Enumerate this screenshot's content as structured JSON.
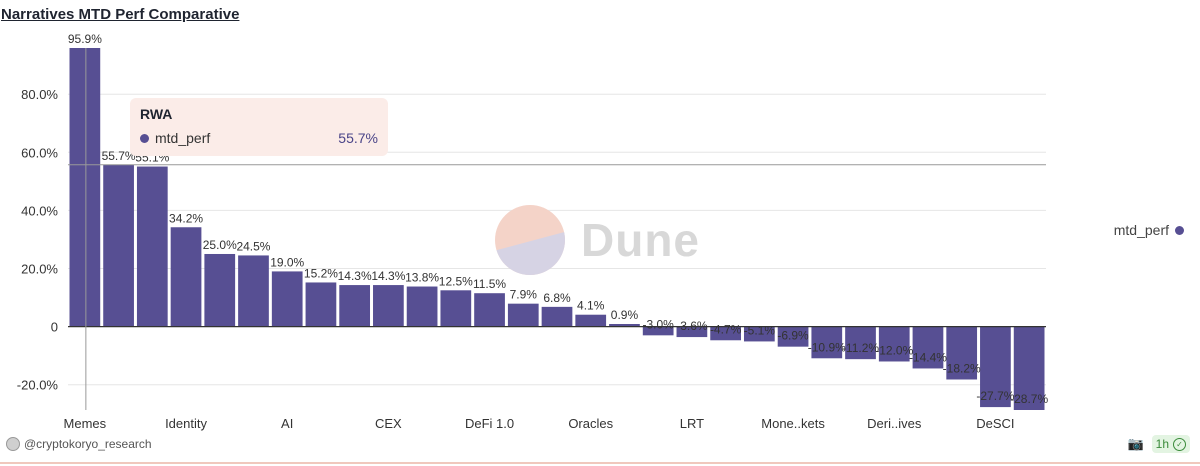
{
  "header": {
    "title": "Narratives MTD Perf Comparative"
  },
  "colors": {
    "bar": "#574f93",
    "grid": "#e6e6e6",
    "axis": "#333333",
    "text": "#333333"
  },
  "chart_data": {
    "type": "bar",
    "title": "Narratives MTD Perf Comparative",
    "series_name": "mtd_perf",
    "ylim": [
      -28.7,
      95.9
    ],
    "yticks": [
      -20,
      0,
      20,
      40,
      60,
      80
    ],
    "ytick_labels": [
      "-20.0%",
      "0",
      "20.0%",
      "40.0%",
      "60.0%",
      "80.0%"
    ],
    "values": [
      95.9,
      55.7,
      55.1,
      34.2,
      25.0,
      24.5,
      19.0,
      15.2,
      14.3,
      14.3,
      13.8,
      12.5,
      11.5,
      7.9,
      6.8,
      4.1,
      0.9,
      -3.0,
      -3.6,
      -4.7,
      -5.1,
      -6.9,
      -10.9,
      -11.2,
      -12.0,
      -14.4,
      -18.2,
      -27.7,
      -28.7
    ],
    "value_labels": [
      "95.9%",
      "55.7%",
      "55.1%",
      "34.2%",
      "25.0%",
      "24.5%",
      "19.0%",
      "15.2%",
      "14.3%",
      "14.3%",
      "13.8%",
      "12.5%",
      "11.5%",
      "7.9%",
      "6.8%",
      "4.1%",
      "0.9%",
      "-3.0%",
      "-3.6%",
      "-4.7%",
      "-5.1%",
      "-6.9%",
      "-10.9%",
      "-11.2%",
      "-12.0%",
      "-14.4%",
      "-18.2%",
      "-27.7%",
      "-28.7%"
    ],
    "shown_x_labels": [
      {
        "index": 0,
        "label": "Memes"
      },
      {
        "index": 3,
        "label": "Identity"
      },
      {
        "index": 6,
        "label": "AI"
      },
      {
        "index": 9,
        "label": "CEX"
      },
      {
        "index": 12,
        "label": "DeFi 1.0"
      },
      {
        "index": 15,
        "label": "Oracles"
      },
      {
        "index": 18,
        "label": "LRT"
      },
      {
        "index": 21,
        "label": "Mone..kets"
      },
      {
        "index": 24,
        "label": "Deri..ives"
      },
      {
        "index": 27,
        "label": "DeSCI"
      }
    ],
    "hover_index": 1,
    "legend_position": "right"
  },
  "tooltip": {
    "title": "RWA",
    "series": "mtd_perf",
    "value": "55.7%"
  },
  "legend": {
    "label": "mtd_perf"
  },
  "watermark": {
    "text": "Dune"
  },
  "footer": {
    "author": "@cryptokoryo_research",
    "refresh": "1h"
  }
}
